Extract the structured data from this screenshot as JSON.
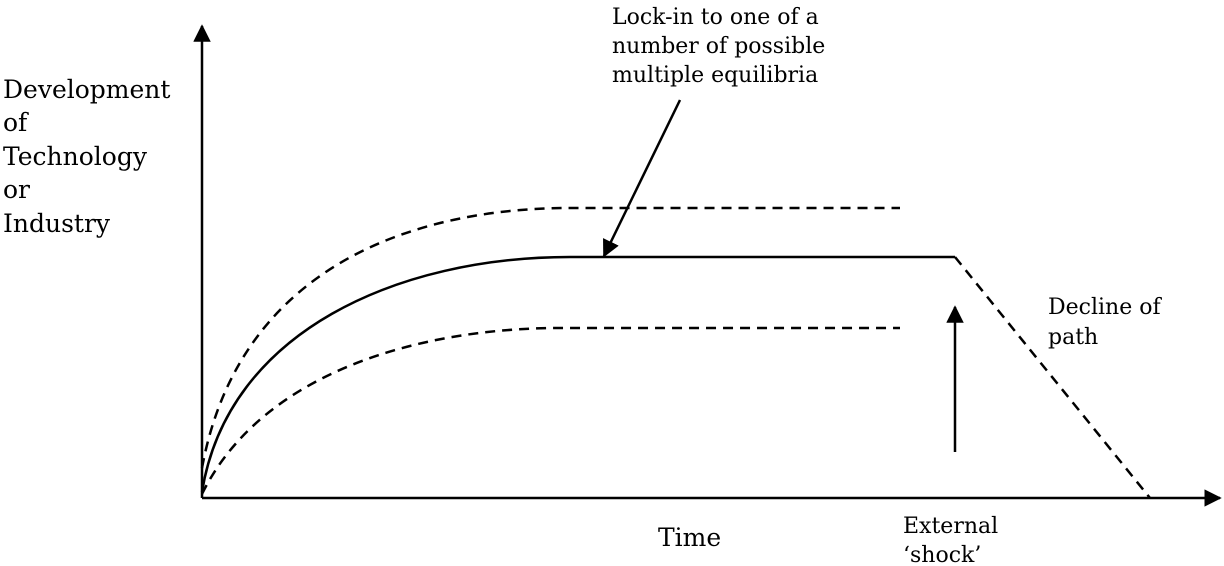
{
  "y_axis_label": [
    "Development",
    "of",
    "Technology",
    "or",
    "Industry"
  ],
  "x_axis_label": "Time",
  "annotations": {
    "lock_in": [
      "Lock-in to one of a",
      "number of possible",
      "multiple equilibria"
    ],
    "decline": [
      "Decline of",
      "path"
    ],
    "shock": [
      "External",
      "‘shock’"
    ]
  }
}
